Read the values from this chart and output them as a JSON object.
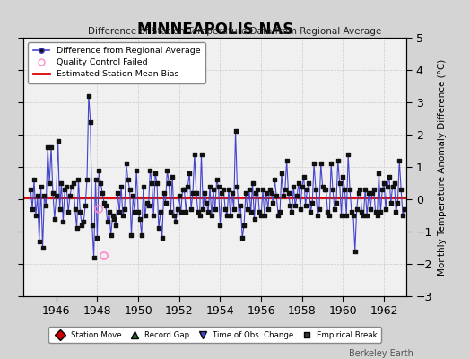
{
  "title": "MINNEAPOLIS NAS",
  "subtitle": "Difference of Station Temperature Data from Regional Average",
  "ylabel": "Monthly Temperature Anomaly Difference (°C)",
  "xlabel_years": [
    1946,
    1948,
    1950,
    1952,
    1954,
    1956,
    1958,
    1960,
    1962
  ],
  "ylim": [
    -3,
    5
  ],
  "yticks": [
    -3,
    -2,
    -1,
    0,
    1,
    2,
    3,
    4,
    5
  ],
  "bias_value": 0.05,
  "fig_bg_color": "#d4d4d4",
  "plot_bg_color": "#f0f0f0",
  "line_color": "#4444cc",
  "marker_color": "#111111",
  "bias_color": "#dd0000",
  "qc_color": "#ff88cc",
  "legend1_entries": [
    "Difference from Regional Average",
    "Quality Control Failed",
    "Estimated Station Mean Bias"
  ],
  "legend2_entries": [
    "Station Move",
    "Record Gap",
    "Time of Obs. Change",
    "Empirical Break"
  ],
  "footer": "Berkeley Earth",
  "t_start": 1944.75,
  "t_end": 1963.0,
  "xlim_start": 1944.4,
  "xlim_end": 1963.1,
  "time_series": [
    0.3,
    -0.3,
    0.6,
    -0.5,
    0.1,
    -1.3,
    0.4,
    -1.5,
    0.1,
    -0.2,
    1.6,
    0.5,
    1.6,
    0.2,
    -0.6,
    0.1,
    1.8,
    -0.3,
    0.5,
    -0.7,
    0.3,
    0.4,
    -0.4,
    0.1,
    0.4,
    0.5,
    -0.3,
    -0.9,
    0.6,
    -0.4,
    -0.8,
    -0.7,
    -0.2,
    0.6,
    3.2,
    2.4,
    -0.8,
    -1.8,
    0.6,
    -1.2,
    0.9,
    0.5,
    0.2,
    -0.1,
    -0.2,
    -0.7,
    -0.4,
    -1.1,
    -0.5,
    -0.6,
    -0.8,
    0.2,
    -0.4,
    0.4,
    -0.5,
    -0.3,
    1.1,
    0.6,
    0.3,
    -1.1,
    0.1,
    -0.4,
    0.9,
    -0.4,
    -0.6,
    -1.1,
    0.4,
    -0.5,
    -0.1,
    -0.2,
    0.9,
    0.5,
    -0.5,
    0.8,
    0.5,
    -0.9,
    -0.4,
    -1.2,
    0.2,
    -0.1,
    0.9,
    0.5,
    -0.4,
    0.7,
    -0.5,
    -0.7,
    -0.3,
    0.1,
    -0.4,
    0.3,
    0.3,
    -0.4,
    0.4,
    0.8,
    -0.3,
    0.2,
    1.4,
    0.2,
    -0.4,
    -0.5,
    1.4,
    -0.3,
    0.2,
    -0.1,
    -0.4,
    0.4,
    -0.5,
    0.3,
    -0.3,
    0.6,
    0.4,
    -0.8,
    0.2,
    0.3,
    -0.3,
    -0.5,
    0.3,
    -0.5,
    0.2,
    -0.3,
    2.1,
    0.4,
    -0.5,
    -0.2,
    -1.2,
    -0.8,
    0.2,
    -0.3,
    0.3,
    -0.4,
    0.5,
    -0.6,
    0.2,
    0.3,
    -0.4,
    -0.5,
    0.3,
    -0.5,
    0.2,
    -0.3,
    0.3,
    0.2,
    -0.1,
    0.6,
    0.1,
    -0.5,
    -0.4,
    0.8,
    0.1,
    0.3,
    1.2,
    0.2,
    -0.2,
    -0.4,
    0.4,
    -0.2,
    0.1,
    0.5,
    -0.3,
    0.4,
    0.7,
    -0.2,
    0.3,
    0.5,
    -0.4,
    -0.1,
    1.1,
    0.3,
    -0.5,
    -0.3,
    1.1,
    0.4,
    0.3,
    0.3,
    -0.4,
    -0.5,
    1.1,
    0.3,
    -0.3,
    -0.1,
    1.2,
    0.5,
    -0.5,
    0.7,
    0.3,
    -0.5,
    1.4,
    0.3,
    -0.4,
    -0.5,
    -1.6,
    -0.3,
    0.2,
    0.3,
    -0.4,
    -0.5,
    0.3,
    -0.5,
    0.2,
    -0.3,
    0.2,
    0.3,
    -0.4,
    -0.5,
    0.8,
    -0.4,
    0.3,
    0.5,
    -0.3,
    0.4,
    0.7,
    -0.1,
    0.4,
    0.5,
    -0.4,
    -0.1,
    1.2,
    0.3,
    -0.5,
    -0.3
  ],
  "qc_times": [
    1948.08,
    1948.33
  ],
  "qc_vals": [
    -0.3,
    -1.75
  ]
}
